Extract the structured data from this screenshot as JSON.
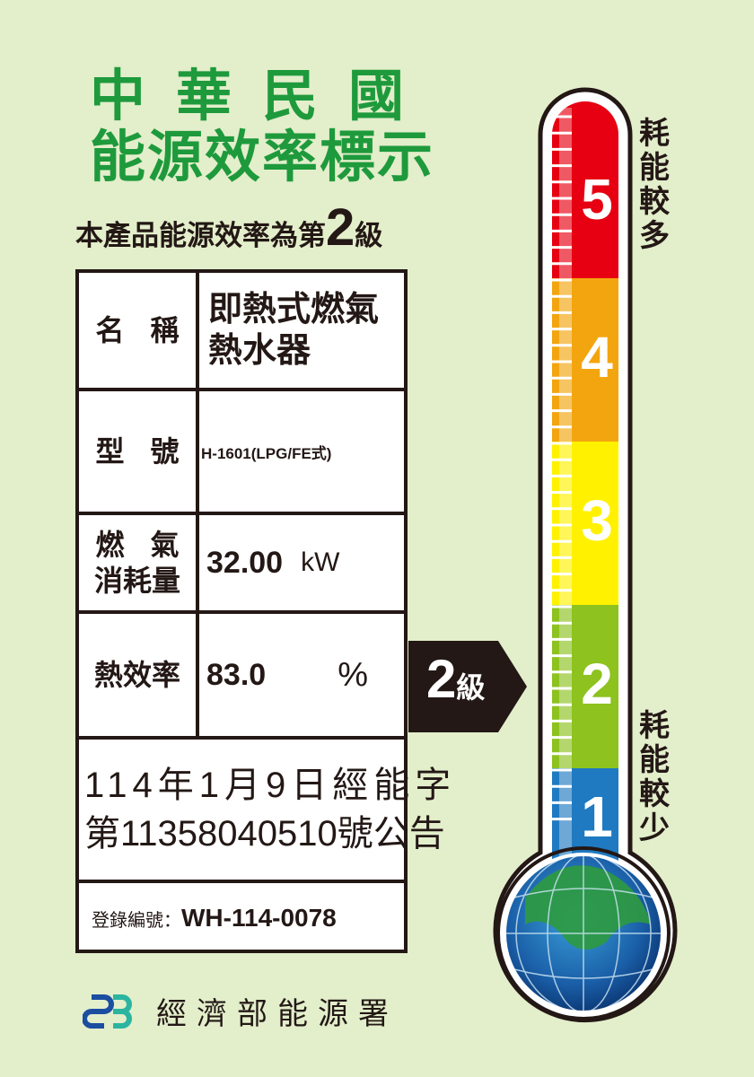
{
  "header": {
    "title_line1": "中華民國",
    "title_line2": "能源效率標示",
    "grade_prefix": "本產品能源效率為第",
    "grade": "2",
    "grade_suffix": "級"
  },
  "table": {
    "name_label": "名 稱",
    "name_value_1": "即熱式燃氣",
    "name_value_2": "熱水器",
    "model_label": "型 號",
    "model_value": "H-1601(LPG/FE式)",
    "gas_label_1": "燃 氣",
    "gas_label_2": "消耗量",
    "gas_value": "32.00",
    "gas_unit": "kW",
    "eff_label": "熱效率",
    "eff_value": "83.0",
    "eff_unit": "%",
    "notice_1": "114年1月9日經能字",
    "notice_2": "第11358040510號公告",
    "reg_label": "登錄編號：",
    "reg_value": "WH-114-0078"
  },
  "indicator": {
    "grade": "2",
    "suffix": "級"
  },
  "thermometer": {
    "levels": [
      "5",
      "4",
      "3",
      "2",
      "1"
    ],
    "colors": [
      "#e60012",
      "#f3a50f",
      "#fff100",
      "#8dc21f",
      "#1f7ac2"
    ],
    "top_label": "耗能較多",
    "bottom_label": "耗能較少",
    "current_level": 2
  },
  "footer": {
    "agency": "經濟部能源署"
  }
}
